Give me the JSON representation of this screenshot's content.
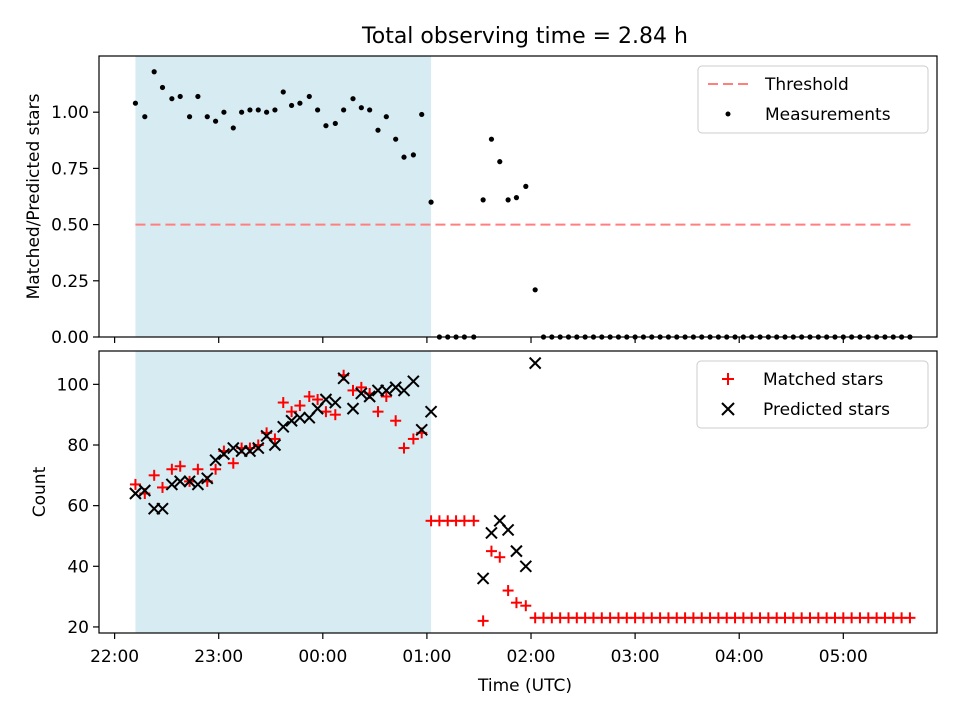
{
  "chart_data": [
    {
      "type": "scatter",
      "title": "Total observing time = 2.84 h",
      "ylabel": "Matched/Predicted stars",
      "ylim": [
        0.0,
        1.25
      ],
      "yticks": [
        "0.00",
        "0.25",
        "0.50",
        "0.75",
        "1.00"
      ],
      "xlim": [
        -0.15,
        7.9
      ],
      "shaded_interval": [
        0.2,
        3.04
      ],
      "legend_position": "top-right",
      "threshold": {
        "name": "Threshold",
        "value": 0.5,
        "x_range": [
          0.2,
          7.68
        ],
        "color": "#ff7f7f"
      },
      "series": [
        {
          "name": "Measurements",
          "color": "#000000",
          "points": [
            [
              0.2,
              1.04
            ],
            [
              0.29,
              0.98
            ],
            [
              0.38,
              1.18
            ],
            [
              0.46,
              1.11
            ],
            [
              0.55,
              1.06
            ],
            [
              0.63,
              1.07
            ],
            [
              0.72,
              0.98
            ],
            [
              0.8,
              1.07
            ],
            [
              0.89,
              0.98
            ],
            [
              0.97,
              0.96
            ],
            [
              1.05,
              1.0
            ],
            [
              1.14,
              0.93
            ],
            [
              1.22,
              1.0
            ],
            [
              1.3,
              1.01
            ],
            [
              1.38,
              1.01
            ],
            [
              1.46,
              1.0
            ],
            [
              1.54,
              1.01
            ],
            [
              1.62,
              1.09
            ],
            [
              1.7,
              1.03
            ],
            [
              1.78,
              1.04
            ],
            [
              1.87,
              1.07
            ],
            [
              1.95,
              1.01
            ],
            [
              2.03,
              0.94
            ],
            [
              2.12,
              0.95
            ],
            [
              2.2,
              1.01
            ],
            [
              2.29,
              1.06
            ],
            [
              2.37,
              1.02
            ],
            [
              2.45,
              1.01
            ],
            [
              2.53,
              0.92
            ],
            [
              2.61,
              0.98
            ],
            [
              2.7,
              0.88
            ],
            [
              2.78,
              0.8
            ],
            [
              2.87,
              0.81
            ],
            [
              2.95,
              0.99
            ],
            [
              3.04,
              0.6
            ],
            [
              3.12,
              0.0
            ],
            [
              3.2,
              0.0
            ],
            [
              3.28,
              0.0
            ],
            [
              3.36,
              0.0
            ],
            [
              3.45,
              0.0
            ],
            [
              3.54,
              0.61
            ],
            [
              3.62,
              0.88
            ],
            [
              3.7,
              0.78
            ],
            [
              3.78,
              0.61
            ],
            [
              3.86,
              0.62
            ],
            [
              3.95,
              0.67
            ],
            [
              4.04,
              0.21
            ],
            [
              4.12,
              0.0
            ],
            [
              4.2,
              0.0
            ],
            [
              4.28,
              0.0
            ],
            [
              4.36,
              0.0
            ],
            [
              4.44,
              0.0
            ],
            [
              4.52,
              0.0
            ],
            [
              4.6,
              0.0
            ],
            [
              4.68,
              0.0
            ],
            [
              4.76,
              0.0
            ],
            [
              4.84,
              0.0
            ],
            [
              4.92,
              0.0
            ],
            [
              5.0,
              0.0
            ],
            [
              5.08,
              0.0
            ],
            [
              5.16,
              0.0
            ],
            [
              5.24,
              0.0
            ],
            [
              5.32,
              0.0
            ],
            [
              5.4,
              0.0
            ],
            [
              5.48,
              0.0
            ],
            [
              5.56,
              0.0
            ],
            [
              5.64,
              0.0
            ],
            [
              5.72,
              0.0
            ],
            [
              5.8,
              0.0
            ],
            [
              5.88,
              0.0
            ],
            [
              5.96,
              0.0
            ],
            [
              6.04,
              0.0
            ],
            [
              6.12,
              0.0
            ],
            [
              6.2,
              0.0
            ],
            [
              6.28,
              0.0
            ],
            [
              6.36,
              0.0
            ],
            [
              6.44,
              0.0
            ],
            [
              6.52,
              0.0
            ],
            [
              6.6,
              0.0
            ],
            [
              6.68,
              0.0
            ],
            [
              6.76,
              0.0
            ],
            [
              6.84,
              0.0
            ],
            [
              6.92,
              0.0
            ],
            [
              7.0,
              0.0
            ],
            [
              7.08,
              0.0
            ],
            [
              7.16,
              0.0
            ],
            [
              7.24,
              0.0
            ],
            [
              7.32,
              0.0
            ],
            [
              7.4,
              0.0
            ],
            [
              7.48,
              0.0
            ],
            [
              7.56,
              0.0
            ],
            [
              7.64,
              0.0
            ]
          ]
        }
      ]
    },
    {
      "type": "scatter",
      "xlabel": "Time (UTC)",
      "ylabel": "Count",
      "ylim": [
        18,
        111
      ],
      "yticks": [
        "20",
        "40",
        "60",
        "80",
        "100"
      ],
      "xlim": [
        -0.15,
        7.9
      ],
      "xticks": [
        {
          "value": 0,
          "label": "22:00"
        },
        {
          "value": 1,
          "label": "23:00"
        },
        {
          "value": 2,
          "label": "00:00"
        },
        {
          "value": 3,
          "label": "01:00"
        },
        {
          "value": 4,
          "label": "02:00"
        },
        {
          "value": 5,
          "label": "03:00"
        },
        {
          "value": 6,
          "label": "04:00"
        },
        {
          "value": 7,
          "label": "05:00"
        }
      ],
      "shaded_interval": [
        0.2,
        3.04
      ],
      "legend_position": "top-right",
      "series": [
        {
          "name": "Matched stars",
          "marker": "plus",
          "color": "#ff0000",
          "points": [
            [
              0.2,
              67
            ],
            [
              0.29,
              64
            ],
            [
              0.38,
              70
            ],
            [
              0.46,
              66
            ],
            [
              0.55,
              72
            ],
            [
              0.63,
              73
            ],
            [
              0.72,
              68
            ],
            [
              0.8,
              72
            ],
            [
              0.89,
              68
            ],
            [
              0.97,
              72
            ],
            [
              1.05,
              78
            ],
            [
              1.14,
              74
            ],
            [
              1.22,
              79
            ],
            [
              1.3,
              79
            ],
            [
              1.38,
              80
            ],
            [
              1.46,
              84
            ],
            [
              1.54,
              82
            ],
            [
              1.62,
              94
            ],
            [
              1.7,
              91
            ],
            [
              1.78,
              93
            ],
            [
              1.87,
              96
            ],
            [
              1.95,
              95
            ],
            [
              2.03,
              91
            ],
            [
              2.12,
              90
            ],
            [
              2.2,
              103
            ],
            [
              2.29,
              98
            ],
            [
              2.37,
              99
            ],
            [
              2.45,
              97
            ],
            [
              2.53,
              91
            ],
            [
              2.61,
              96
            ],
            [
              2.7,
              88
            ],
            [
              2.78,
              79
            ],
            [
              2.87,
              82
            ],
            [
              2.95,
              84
            ],
            [
              3.04,
              55
            ],
            [
              3.12,
              55
            ],
            [
              3.2,
              55
            ],
            [
              3.28,
              55
            ],
            [
              3.36,
              55
            ],
            [
              3.45,
              55
            ],
            [
              3.54,
              22
            ],
            [
              3.62,
              45
            ],
            [
              3.7,
              43
            ],
            [
              3.78,
              32
            ],
            [
              3.86,
              28
            ],
            [
              3.95,
              27
            ],
            [
              4.04,
              23
            ],
            [
              4.12,
              23
            ],
            [
              4.2,
              23
            ],
            [
              4.28,
              23
            ],
            [
              4.36,
              23
            ],
            [
              4.44,
              23
            ],
            [
              4.52,
              23
            ],
            [
              4.6,
              23
            ],
            [
              4.68,
              23
            ],
            [
              4.76,
              23
            ],
            [
              4.84,
              23
            ],
            [
              4.92,
              23
            ],
            [
              5.0,
              23
            ],
            [
              5.08,
              23
            ],
            [
              5.16,
              23
            ],
            [
              5.24,
              23
            ],
            [
              5.32,
              23
            ],
            [
              5.4,
              23
            ],
            [
              5.48,
              23
            ],
            [
              5.56,
              23
            ],
            [
              5.64,
              23
            ],
            [
              5.72,
              23
            ],
            [
              5.8,
              23
            ],
            [
              5.88,
              23
            ],
            [
              5.96,
              23
            ],
            [
              6.04,
              23
            ],
            [
              6.12,
              23
            ],
            [
              6.2,
              23
            ],
            [
              6.28,
              23
            ],
            [
              6.36,
              23
            ],
            [
              6.44,
              23
            ],
            [
              6.52,
              23
            ],
            [
              6.6,
              23
            ],
            [
              6.68,
              23
            ],
            [
              6.76,
              23
            ],
            [
              6.84,
              23
            ],
            [
              6.92,
              23
            ],
            [
              7.0,
              23
            ],
            [
              7.08,
              23
            ],
            [
              7.16,
              23
            ],
            [
              7.24,
              23
            ],
            [
              7.32,
              23
            ],
            [
              7.4,
              23
            ],
            [
              7.48,
              23
            ],
            [
              7.56,
              23
            ],
            [
              7.64,
              23
            ]
          ]
        },
        {
          "name": "Predicted stars",
          "marker": "x",
          "color": "#000000",
          "points": [
            [
              0.2,
              64
            ],
            [
              0.29,
              65
            ],
            [
              0.38,
              59
            ],
            [
              0.46,
              59
            ],
            [
              0.55,
              67
            ],
            [
              0.63,
              68
            ],
            [
              0.72,
              68
            ],
            [
              0.8,
              67
            ],
            [
              0.89,
              69
            ],
            [
              0.97,
              75
            ],
            [
              1.05,
              77
            ],
            [
              1.14,
              79
            ],
            [
              1.22,
              78
            ],
            [
              1.3,
              78
            ],
            [
              1.38,
              79
            ],
            [
              1.46,
              83
            ],
            [
              1.54,
              80
            ],
            [
              1.62,
              86
            ],
            [
              1.7,
              88
            ],
            [
              1.78,
              89
            ],
            [
              1.87,
              89
            ],
            [
              1.95,
              92
            ],
            [
              2.03,
              95
            ],
            [
              2.12,
              94
            ],
            [
              2.2,
              102
            ],
            [
              2.29,
              92
            ],
            [
              2.37,
              97
            ],
            [
              2.45,
              96
            ],
            [
              2.53,
              98
            ],
            [
              2.61,
              98
            ],
            [
              2.7,
              99
            ],
            [
              2.78,
              98
            ],
            [
              2.87,
              101
            ],
            [
              2.95,
              85
            ],
            [
              3.04,
              91
            ],
            [
              3.54,
              36
            ],
            [
              3.62,
              51
            ],
            [
              3.7,
              55
            ],
            [
              3.78,
              52
            ],
            [
              3.86,
              45
            ],
            [
              3.95,
              40
            ],
            [
              4.04,
              107
            ]
          ]
        }
      ]
    }
  ]
}
